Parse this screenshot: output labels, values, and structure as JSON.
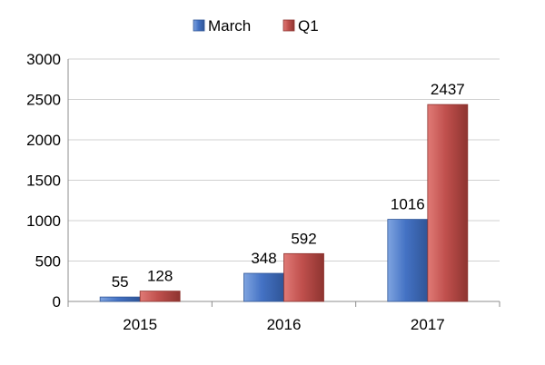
{
  "chart_data": {
    "type": "bar",
    "categories": [
      "2015",
      "2016",
      "2017"
    ],
    "series": [
      {
        "name": "March",
        "values": [
          55,
          348,
          1016
        ],
        "color": "#4472C4"
      },
      {
        "name": "Q1",
        "values": [
          128,
          592,
          2437
        ],
        "color": "#C0504D"
      }
    ],
    "title": "",
    "xlabel": "",
    "ylabel": "",
    "ylim": [
      0,
      3000
    ],
    "yticks": [
      0,
      500,
      1000,
      1500,
      2000,
      2500,
      3000
    ],
    "grid": true,
    "legend_position": "top"
  }
}
